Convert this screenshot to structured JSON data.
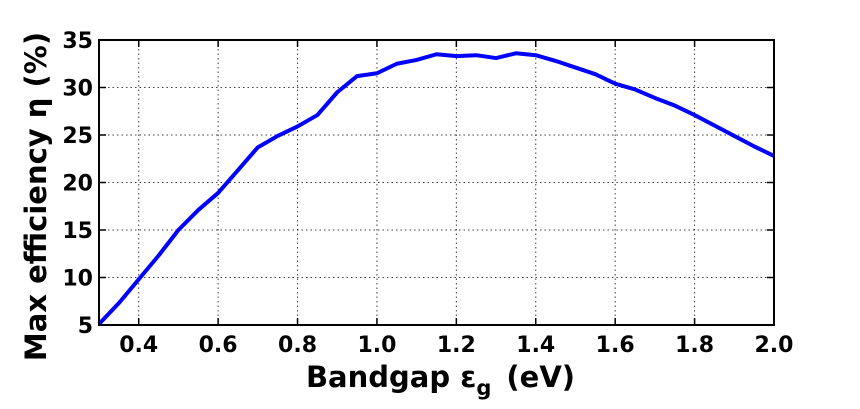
{
  "chart_data": {
    "type": "line",
    "title": "",
    "xlabel": {
      "prefix": "Bandgap ",
      "symbol": "ε",
      "subscript": "g",
      "suffix": "(eV)"
    },
    "ylabel": "Max efficiency η (%)",
    "xlim": [
      0.3,
      2.0
    ],
    "ylim": [
      5,
      35
    ],
    "xticks": [
      0.4,
      0.6,
      0.8,
      1.0,
      1.2,
      1.4,
      1.6,
      1.8,
      2.0
    ],
    "xtick_labels": [
      "0.4",
      "0.6",
      "0.8",
      "1.0",
      "1.2",
      "1.4",
      "1.6",
      "1.8",
      "2.0"
    ],
    "yticks": [
      5,
      10,
      15,
      20,
      25,
      30,
      35
    ],
    "ytick_labels": [
      "5",
      "10",
      "15",
      "20",
      "25",
      "30",
      "35"
    ],
    "grid": true,
    "line_color": "#0000ff",
    "series": [
      {
        "x": [
          0.3,
          0.35,
          0.4,
          0.45,
          0.5,
          0.55,
          0.6,
          0.65,
          0.7,
          0.75,
          0.8,
          0.85,
          0.9,
          0.95,
          1.0,
          1.05,
          1.1,
          1.15,
          1.2,
          1.25,
          1.3,
          1.35,
          1.4,
          1.45,
          1.5,
          1.55,
          1.6,
          1.65,
          1.7,
          1.75,
          1.8,
          1.85,
          1.9,
          1.95,
          2.0
        ],
        "y": [
          5.1,
          7.3,
          9.8,
          12.3,
          15.0,
          17.1,
          18.9,
          21.3,
          23.7,
          24.9,
          25.9,
          27.1,
          29.5,
          31.2,
          31.5,
          32.5,
          32.9,
          33.5,
          33.3,
          33.4,
          33.1,
          33.6,
          33.4,
          32.8,
          32.1,
          31.4,
          30.4,
          29.8,
          28.9,
          28.1,
          27.1,
          26.0,
          24.9,
          23.8,
          22.8
        ]
      }
    ]
  }
}
